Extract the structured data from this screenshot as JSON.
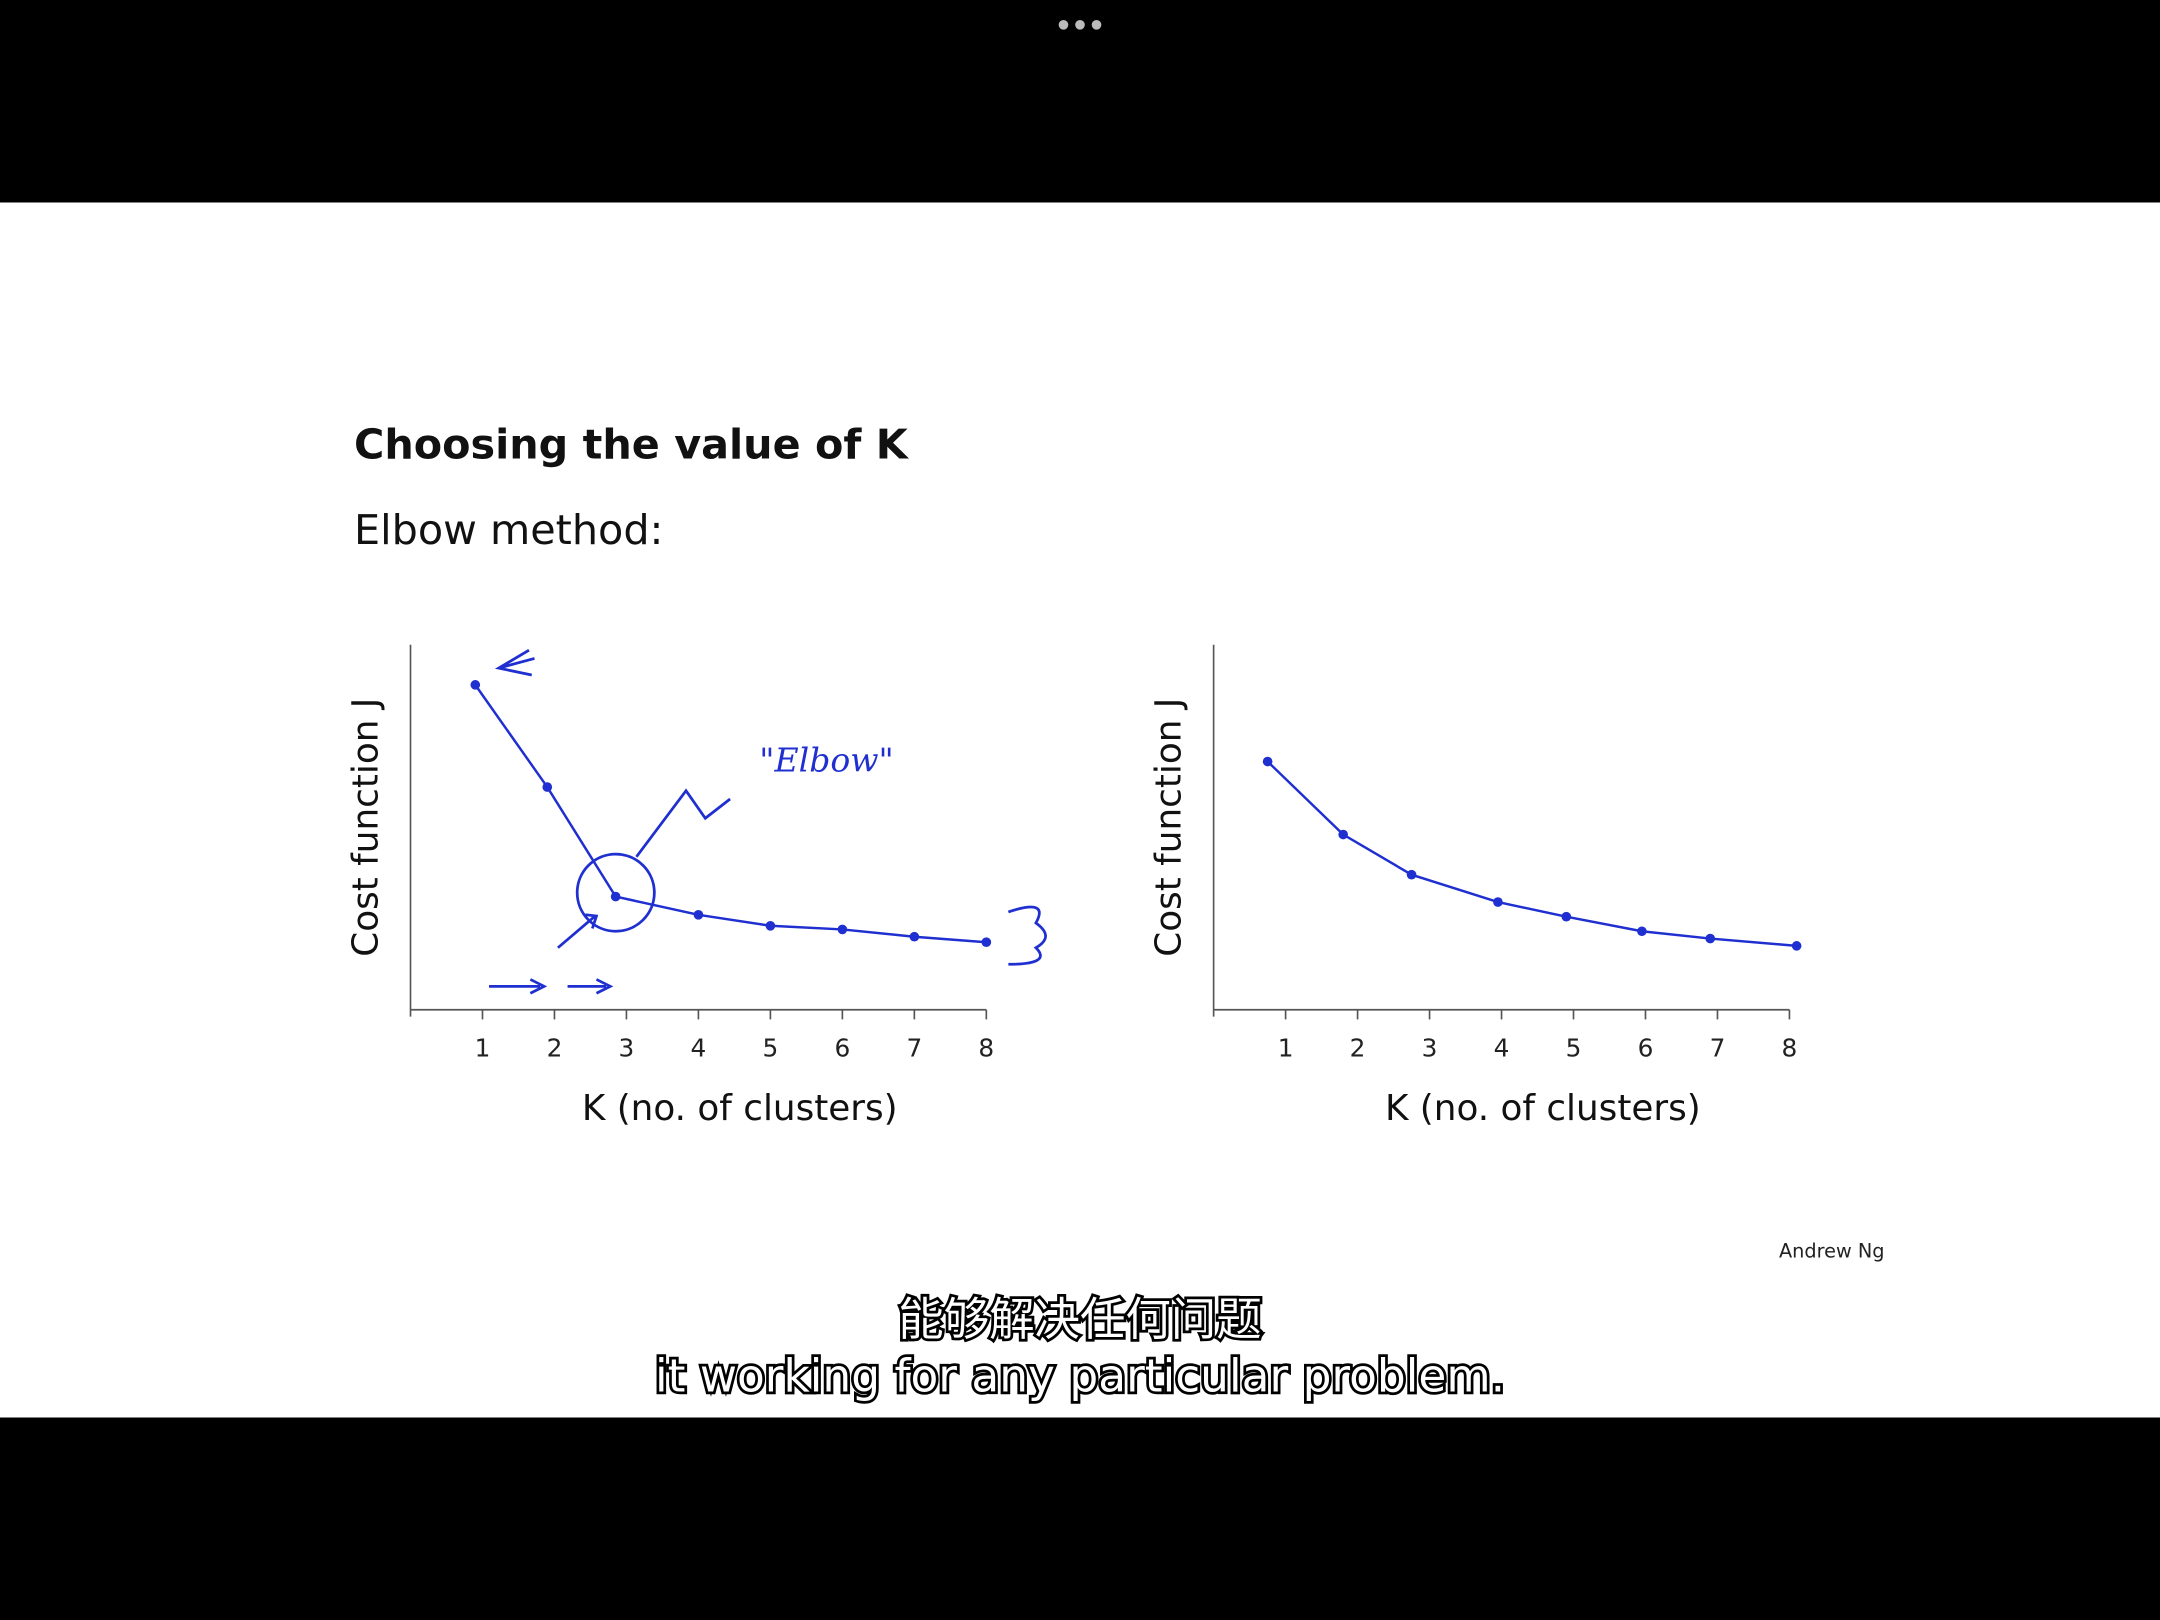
{
  "slide": {
    "title": "Choosing the value of K",
    "subtitle": "Elbow method:",
    "author": "Andrew Ng"
  },
  "captions": [
    "能够解决任何问题",
    "it working for any particular problem."
  ],
  "chart_data": [
    {
      "type": "line",
      "xlabel": "K (no. of clusters)",
      "ylabel": "Cost function J",
      "x": [
        0.9,
        1.9,
        2.85,
        4,
        5,
        6,
        7,
        8
      ],
      "values": [
        89,
        61,
        31,
        26,
        23,
        22,
        20,
        18.5
      ],
      "color": "#1f2fd0",
      "xlim": [
        0,
        8
      ],
      "xticks": [
        1,
        2,
        3,
        4,
        5,
        6,
        7,
        8
      ],
      "ylim": [
        0,
        100
      ],
      "grid": false,
      "annotations": [
        "\"Elbow\""
      ]
    },
    {
      "type": "line",
      "xlabel": "K (no. of clusters)",
      "ylabel": "Cost function J",
      "x": [
        0.75,
        1.8,
        2.75,
        3.95,
        4.9,
        5.95,
        6.9,
        8.1
      ],
      "values": [
        68,
        48,
        37,
        29.5,
        25.5,
        21.5,
        19.5,
        17.5
      ],
      "color": "#1f2fd0",
      "xlim": [
        0,
        8
      ],
      "xticks": [
        1,
        2,
        3,
        4,
        5,
        6,
        7,
        8
      ],
      "ylim": [
        0,
        100
      ],
      "grid": false
    }
  ]
}
